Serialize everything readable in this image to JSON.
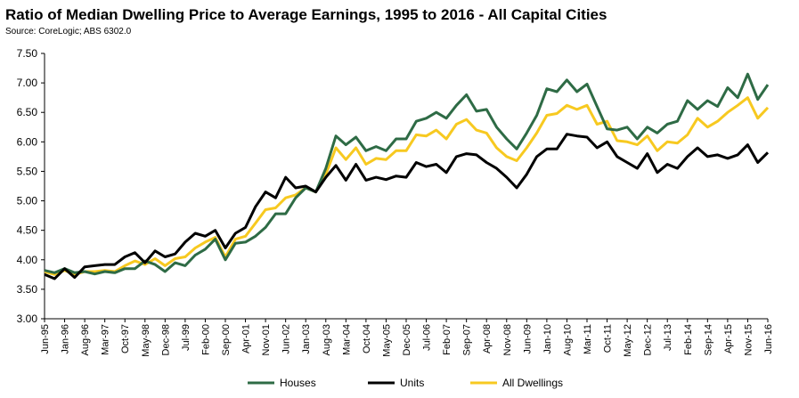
{
  "chart_data": {
    "type": "line",
    "title": "Ratio of Median Dwelling Price to Average Earnings, 1995 to 2016 - All Capital Cities",
    "subtitle": "Source: CoreLogic; ABS 6302.0",
    "categories": [
      "Jun-95",
      null,
      "Jan-96",
      null,
      "Aug-96",
      null,
      "Mar-97",
      null,
      "Oct-97",
      null,
      "May-98",
      null,
      "Dec-98",
      null,
      "Jul-99",
      null,
      "Feb-00",
      null,
      "Sep-00",
      null,
      "Apr-01",
      null,
      "Nov-01",
      null,
      "Jun-02",
      null,
      "Jan-03",
      null,
      "Aug-03",
      null,
      "Mar-04",
      null,
      "Oct-04",
      null,
      "May-05",
      null,
      "Dec-05",
      null,
      "Jul-06",
      null,
      "Feb-07",
      null,
      "Sep-07",
      null,
      "Apr-08",
      null,
      "Nov-08",
      null,
      "Jun-09",
      null,
      "Jan-10",
      null,
      "Aug-10",
      null,
      "Mar-11",
      null,
      "Oct-11",
      null,
      "May-12",
      null,
      "Dec-12",
      null,
      "Jul-13",
      null,
      "Feb-14",
      null,
      "Sep-14",
      null,
      "Apr-15",
      null,
      "Nov-15",
      null,
      "Jun-16"
    ],
    "series": [
      {
        "name": "Houses",
        "color": "#2e6b45",
        "values": [
          3.82,
          3.78,
          3.85,
          3.78,
          3.8,
          3.76,
          3.8,
          3.78,
          3.85,
          3.85,
          3.98,
          3.92,
          3.8,
          3.95,
          3.9,
          4.08,
          4.18,
          4.35,
          4.0,
          4.28,
          4.3,
          4.4,
          4.55,
          4.78,
          4.78,
          5.05,
          5.22,
          5.15,
          5.55,
          6.1,
          5.95,
          6.08,
          5.85,
          5.92,
          5.85,
          6.05,
          6.05,
          6.35,
          6.4,
          6.5,
          6.4,
          6.62,
          6.8,
          6.52,
          6.55,
          6.25,
          6.05,
          5.88,
          6.15,
          6.45,
          6.9,
          6.85,
          7.05,
          6.85,
          6.98,
          6.6,
          6.22,
          6.2,
          6.25,
          6.05,
          6.25,
          6.15,
          6.3,
          6.35,
          6.7,
          6.55,
          6.7,
          6.6,
          6.92,
          6.75,
          7.15,
          6.72,
          6.97
        ]
      },
      {
        "name": "Units",
        "color": "#000000",
        "values": [
          3.75,
          3.68,
          3.85,
          3.7,
          3.88,
          3.9,
          3.92,
          3.92,
          4.05,
          4.12,
          3.95,
          4.15,
          4.05,
          4.1,
          4.3,
          4.45,
          4.4,
          4.5,
          4.2,
          4.45,
          4.55,
          4.9,
          5.15,
          5.05,
          5.4,
          5.22,
          5.25,
          5.15,
          5.4,
          5.6,
          5.35,
          5.62,
          5.35,
          5.4,
          5.36,
          5.42,
          5.4,
          5.65,
          5.58,
          5.62,
          5.48,
          5.75,
          5.8,
          5.78,
          5.65,
          5.55,
          5.4,
          5.22,
          5.45,
          5.75,
          5.88,
          5.88,
          6.13,
          6.1,
          6.08,
          5.9,
          6.0,
          5.75,
          5.65,
          5.55,
          5.8,
          5.48,
          5.62,
          5.55,
          5.75,
          5.9,
          5.75,
          5.78,
          5.72,
          5.78,
          5.95,
          5.65,
          5.82
        ]
      },
      {
        "name": "All Dwellings",
        "color": "#f7c920",
        "values": [
          3.8,
          3.75,
          3.82,
          3.75,
          3.8,
          3.8,
          3.82,
          3.8,
          3.9,
          3.98,
          3.92,
          4.02,
          3.9,
          4.02,
          4.05,
          4.2,
          4.3,
          4.38,
          4.05,
          4.35,
          4.4,
          4.62,
          4.85,
          4.88,
          5.05,
          5.1,
          5.22,
          5.15,
          5.45,
          5.9,
          5.7,
          5.9,
          5.62,
          5.72,
          5.7,
          5.85,
          5.85,
          6.12,
          6.1,
          6.2,
          6.05,
          6.3,
          6.38,
          6.2,
          6.15,
          5.9,
          5.75,
          5.68,
          5.9,
          6.15,
          6.45,
          6.48,
          6.62,
          6.55,
          6.62,
          6.3,
          6.35,
          6.02,
          6.0,
          5.95,
          6.1,
          5.85,
          6.0,
          5.98,
          6.12,
          6.4,
          6.25,
          6.35,
          6.5,
          6.62,
          6.75,
          6.4,
          6.58
        ]
      }
    ],
    "ylim": [
      3,
      7.5
    ],
    "yticks": [
      {
        "value": 3,
        "label": "3.00"
      },
      {
        "value": 3.5,
        "label": "3.50"
      },
      {
        "value": 4,
        "label": "4.00"
      },
      {
        "value": 4.5,
        "label": "4.50"
      },
      {
        "value": 5,
        "label": "5.00"
      },
      {
        "value": 5.5,
        "label": "5.50"
      },
      {
        "value": 6,
        "label": "6.00"
      },
      {
        "value": 6.5,
        "label": "6.50"
      },
      {
        "value": 7,
        "label": "7.00"
      },
      {
        "value": 7.5,
        "label": "7.50"
      }
    ],
    "grid": false,
    "legend": "bottom"
  }
}
